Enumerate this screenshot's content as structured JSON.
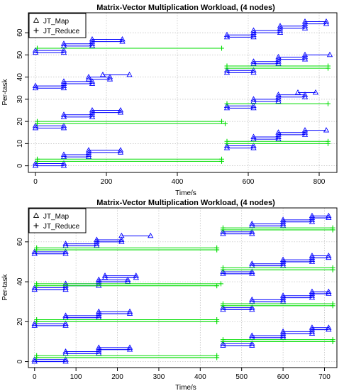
{
  "chart_data": [
    {
      "type": "line",
      "title": "Matrix-Vector Multiplication Workload, (4 nodes)",
      "xlabel": "Time/s",
      "ylabel": "Per-task",
      "xlim": [
        -20,
        850
      ],
      "ylim": [
        -3,
        69
      ],
      "xticks": [
        0,
        200,
        400,
        600,
        800
      ],
      "yticks": [
        0,
        10,
        20,
        30,
        40,
        50,
        60
      ],
      "grid": true,
      "legend": {
        "position": "top-left",
        "entries": [
          {
            "label": "JT_Map",
            "marker": "triangle"
          },
          {
            "label": "JT_Reduce",
            "marker": "plus"
          }
        ]
      },
      "colors": {
        "map": "#0000ff",
        "reduce": "#00dd00",
        "grid": "#bbbbbb"
      },
      "series": [
        {
          "name": "JT_Map",
          "marker": "triangle",
          "segments": [
            {
              "start": 0,
              "end": 80,
              "y": 0
            },
            {
              "start": 0,
              "end": 80,
              "y": 1
            },
            {
              "start": 80,
              "end": 150,
              "y": 4
            },
            {
              "start": 80,
              "end": 150,
              "y": 5
            },
            {
              "start": 150,
              "end": 240,
              "y": 6
            },
            {
              "start": 150,
              "end": 240,
              "y": 7
            },
            {
              "start": 0,
              "end": 80,
              "y": 17
            },
            {
              "start": 0,
              "end": 80,
              "y": 18
            },
            {
              "start": 80,
              "end": 160,
              "y": 22
            },
            {
              "start": 80,
              "end": 160,
              "y": 23
            },
            {
              "start": 160,
              "end": 240,
              "y": 24
            },
            {
              "start": 160,
              "end": 240,
              "y": 25
            },
            {
              "start": 0,
              "end": 80,
              "y": 35
            },
            {
              "start": 0,
              "end": 80,
              "y": 36
            },
            {
              "start": 80,
              "end": 160,
              "y": 37
            },
            {
              "start": 80,
              "end": 160,
              "y": 38
            },
            {
              "start": 150,
              "end": 210,
              "y": 39
            },
            {
              "start": 150,
              "end": 210,
              "y": 40
            },
            {
              "start": 190,
              "end": 265,
              "y": 41
            },
            {
              "start": 0,
              "end": 80,
              "y": 51
            },
            {
              "start": 0,
              "end": 80,
              "y": 52
            },
            {
              "start": 80,
              "end": 160,
              "y": 54
            },
            {
              "start": 80,
              "end": 160,
              "y": 55
            },
            {
              "start": 160,
              "end": 245,
              "y": 56
            },
            {
              "start": 160,
              "end": 245,
              "y": 57
            },
            {
              "start": 540,
              "end": 615,
              "y": 8
            },
            {
              "start": 540,
              "end": 615,
              "y": 9
            },
            {
              "start": 615,
              "end": 685,
              "y": 12
            },
            {
              "start": 615,
              "end": 685,
              "y": 13
            },
            {
              "start": 685,
              "end": 760,
              "y": 14
            },
            {
              "start": 685,
              "end": 760,
              "y": 15
            },
            {
              "start": 760,
              "end": 820,
              "y": 16
            },
            {
              "start": 540,
              "end": 615,
              "y": 26
            },
            {
              "start": 540,
              "end": 615,
              "y": 27
            },
            {
              "start": 615,
              "end": 685,
              "y": 29
            },
            {
              "start": 615,
              "end": 685,
              "y": 30
            },
            {
              "start": 685,
              "end": 760,
              "y": 31
            },
            {
              "start": 685,
              "end": 760,
              "y": 32
            },
            {
              "start": 740,
              "end": 790,
              "y": 33
            },
            {
              "start": 540,
              "end": 615,
              "y": 42
            },
            {
              "start": 540,
              "end": 615,
              "y": 43
            },
            {
              "start": 615,
              "end": 685,
              "y": 46
            },
            {
              "start": 615,
              "end": 685,
              "y": 47
            },
            {
              "start": 685,
              "end": 760,
              "y": 48
            },
            {
              "start": 685,
              "end": 760,
              "y": 49
            },
            {
              "start": 760,
              "end": 830,
              "y": 50
            },
            {
              "start": 540,
              "end": 615,
              "y": 58
            },
            {
              "start": 540,
              "end": 615,
              "y": 59
            },
            {
              "start": 615,
              "end": 690,
              "y": 60
            },
            {
              "start": 615,
              "end": 690,
              "y": 61
            },
            {
              "start": 690,
              "end": 760,
              "y": 62
            },
            {
              "start": 690,
              "end": 760,
              "y": 63
            },
            {
              "start": 760,
              "end": 820,
              "y": 64
            },
            {
              "start": 760,
              "end": 820,
              "y": 65
            }
          ]
        },
        {
          "name": "JT_Reduce",
          "marker": "plus",
          "segments": [
            {
              "start": 5,
              "end": 525,
              "y": 2
            },
            {
              "start": 5,
              "end": 525,
              "y": 3
            },
            {
              "start": 5,
              "end": 535,
              "y": 19
            },
            {
              "start": 5,
              "end": 525,
              "y": 20
            },
            {
              "start": 5,
              "end": 525,
              "y": 53
            },
            {
              "start": 540,
              "end": 825,
              "y": 10
            },
            {
              "start": 540,
              "end": 825,
              "y": 11
            },
            {
              "start": 540,
              "end": 825,
              "y": 28
            },
            {
              "start": 540,
              "end": 825,
              "y": 44
            },
            {
              "start": 540,
              "end": 825,
              "y": 45
            }
          ]
        }
      ]
    },
    {
      "type": "line",
      "title": "Matrix-Vector Multiplication Workload, (4 nodes)",
      "xlabel": "Time/s",
      "ylabel": "Per-task",
      "xlim": [
        -15,
        730
      ],
      "ylim": [
        -3,
        77
      ],
      "xticks": [
        0,
        100,
        200,
        300,
        400,
        500,
        600,
        700
      ],
      "yticks": [
        0,
        20,
        40,
        60
      ],
      "grid": true,
      "legend": {
        "position": "top-left",
        "entries": [
          {
            "label": "JT_Map",
            "marker": "triangle"
          },
          {
            "label": "JT_Reduce",
            "marker": "plus"
          }
        ]
      },
      "colors": {
        "map": "#0000ff",
        "reduce": "#00dd00",
        "grid": "#bbbbbb"
      },
      "series": [
        {
          "name": "JT_Map",
          "marker": "triangle",
          "segments": [
            {
              "start": 0,
              "end": 75,
              "y": 0
            },
            {
              "start": 0,
              "end": 75,
              "y": 1
            },
            {
              "start": 75,
              "end": 155,
              "y": 4
            },
            {
              "start": 75,
              "end": 155,
              "y": 5
            },
            {
              "start": 155,
              "end": 230,
              "y": 6
            },
            {
              "start": 155,
              "end": 230,
              "y": 7
            },
            {
              "start": 0,
              "end": 75,
              "y": 18
            },
            {
              "start": 0,
              "end": 75,
              "y": 19
            },
            {
              "start": 75,
              "end": 155,
              "y": 22
            },
            {
              "start": 75,
              "end": 155,
              "y": 23
            },
            {
              "start": 155,
              "end": 230,
              "y": 24
            },
            {
              "start": 155,
              "end": 230,
              "y": 25
            },
            {
              "start": 0,
              "end": 75,
              "y": 36
            },
            {
              "start": 0,
              "end": 75,
              "y": 37
            },
            {
              "start": 75,
              "end": 155,
              "y": 38
            },
            {
              "start": 75,
              "end": 155,
              "y": 39
            },
            {
              "start": 155,
              "end": 225,
              "y": 40
            },
            {
              "start": 155,
              "end": 225,
              "y": 41
            },
            {
              "start": 170,
              "end": 245,
              "y": 42
            },
            {
              "start": 170,
              "end": 245,
              "y": 43
            },
            {
              "start": 0,
              "end": 75,
              "y": 54
            },
            {
              "start": 0,
              "end": 75,
              "y": 55
            },
            {
              "start": 75,
              "end": 150,
              "y": 58
            },
            {
              "start": 75,
              "end": 150,
              "y": 59
            },
            {
              "start": 150,
              "end": 210,
              "y": 60
            },
            {
              "start": 150,
              "end": 210,
              "y": 61
            },
            {
              "start": 210,
              "end": 280,
              "y": 63
            },
            {
              "start": 455,
              "end": 525,
              "y": 8
            },
            {
              "start": 455,
              "end": 525,
              "y": 9
            },
            {
              "start": 525,
              "end": 600,
              "y": 12
            },
            {
              "start": 525,
              "end": 600,
              "y": 13
            },
            {
              "start": 600,
              "end": 670,
              "y": 14
            },
            {
              "start": 600,
              "end": 670,
              "y": 15
            },
            {
              "start": 670,
              "end": 710,
              "y": 16
            },
            {
              "start": 670,
              "end": 710,
              "y": 17
            },
            {
              "start": 455,
              "end": 525,
              "y": 26
            },
            {
              "start": 455,
              "end": 525,
              "y": 27
            },
            {
              "start": 525,
              "end": 600,
              "y": 30
            },
            {
              "start": 525,
              "end": 600,
              "y": 31
            },
            {
              "start": 600,
              "end": 670,
              "y": 32
            },
            {
              "start": 600,
              "end": 670,
              "y": 33
            },
            {
              "start": 670,
              "end": 710,
              "y": 34
            },
            {
              "start": 670,
              "end": 710,
              "y": 35
            },
            {
              "start": 455,
              "end": 525,
              "y": 44
            },
            {
              "start": 455,
              "end": 525,
              "y": 45
            },
            {
              "start": 525,
              "end": 600,
              "y": 48
            },
            {
              "start": 525,
              "end": 600,
              "y": 49
            },
            {
              "start": 600,
              "end": 670,
              "y": 50
            },
            {
              "start": 600,
              "end": 670,
              "y": 51
            },
            {
              "start": 670,
              "end": 710,
              "y": 52
            },
            {
              "start": 670,
              "end": 710,
              "y": 53
            },
            {
              "start": 455,
              "end": 525,
              "y": 64
            },
            {
              "start": 455,
              "end": 525,
              "y": 65
            },
            {
              "start": 525,
              "end": 600,
              "y": 68
            },
            {
              "start": 525,
              "end": 600,
              "y": 69
            },
            {
              "start": 600,
              "end": 670,
              "y": 70
            },
            {
              "start": 600,
              "end": 670,
              "y": 71
            },
            {
              "start": 670,
              "end": 710,
              "y": 72
            },
            {
              "start": 670,
              "end": 710,
              "y": 73
            }
          ]
        },
        {
          "name": "JT_Reduce",
          "marker": "plus",
          "segments": [
            {
              "start": 5,
              "end": 440,
              "y": 2
            },
            {
              "start": 5,
              "end": 440,
              "y": 3
            },
            {
              "start": 5,
              "end": 440,
              "y": 20
            },
            {
              "start": 5,
              "end": 440,
              "y": 21
            },
            {
              "start": 5,
              "end": 440,
              "y": 38
            },
            {
              "start": 5,
              "end": 450,
              "y": 39
            },
            {
              "start": 5,
              "end": 440,
              "y": 56
            },
            {
              "start": 5,
              "end": 440,
              "y": 57
            },
            {
              "start": 455,
              "end": 720,
              "y": 10
            },
            {
              "start": 455,
              "end": 720,
              "y": 11
            },
            {
              "start": 455,
              "end": 720,
              "y": 28
            },
            {
              "start": 455,
              "end": 720,
              "y": 29
            },
            {
              "start": 455,
              "end": 720,
              "y": 46
            },
            {
              "start": 455,
              "end": 720,
              "y": 47
            },
            {
              "start": 455,
              "end": 720,
              "y": 66
            },
            {
              "start": 455,
              "end": 720,
              "y": 67
            }
          ]
        }
      ]
    }
  ]
}
